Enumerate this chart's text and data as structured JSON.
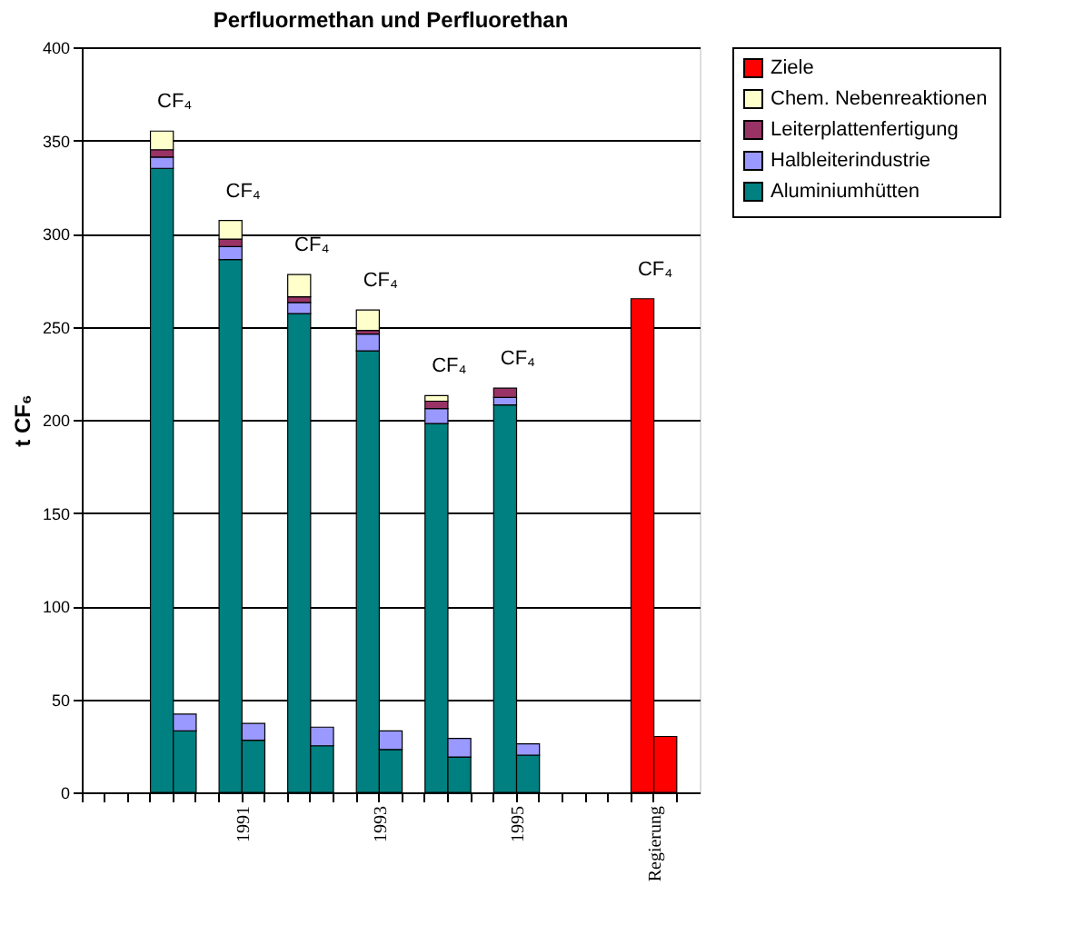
{
  "chart_data": {
    "type": "bar",
    "title": "Perfluormethan und Perfluorethan",
    "ylabel": "t CF₆",
    "categories": [
      null,
      null,
      null,
      null,
      null,
      null,
      "1991",
      null,
      null,
      null,
      null,
      null,
      "1993",
      null,
      null,
      null,
      null,
      null,
      "1995",
      null,
      null,
      null,
      null,
      null,
      "Regierung",
      null,
      null
    ],
    "stacked": true,
    "series": [
      {
        "name": "Aluminiumhütten",
        "color": "#008080",
        "values": [
          null,
          null,
          null,
          335,
          33,
          null,
          286,
          28,
          null,
          257,
          25,
          null,
          237,
          23,
          null,
          198,
          19,
          null,
          208,
          20,
          null,
          null,
          null,
          null,
          null,
          null,
          null
        ]
      },
      {
        "name": "Halbleiterindustrie",
        "color": "#9999ff",
        "values": [
          null,
          null,
          null,
          6,
          9,
          null,
          7,
          9,
          null,
          6,
          10,
          null,
          9,
          10,
          null,
          8,
          10,
          null,
          4,
          6,
          null,
          null,
          null,
          null,
          null,
          null,
          null
        ]
      },
      {
        "name": "Leiterplattenfertigung",
        "color": "#993366",
        "values": [
          null,
          null,
          null,
          4,
          null,
          null,
          4,
          null,
          null,
          3,
          null,
          null,
          2,
          null,
          null,
          4,
          null,
          null,
          5,
          null,
          null,
          null,
          null,
          null,
          null,
          null,
          null
        ]
      },
      {
        "name": "Chem. Nebenreaktionen",
        "color": "#ffffcc",
        "values": [
          null,
          null,
          null,
          10,
          null,
          null,
          10,
          null,
          null,
          12,
          null,
          null,
          11,
          null,
          null,
          3,
          null,
          null,
          null,
          null,
          null,
          null,
          null,
          null,
          null,
          null,
          null
        ]
      },
      {
        "name": "Ziele",
        "color": "#ff0000",
        "values": [
          null,
          null,
          null,
          null,
          null,
          null,
          null,
          null,
          null,
          null,
          null,
          null,
          null,
          null,
          null,
          null,
          null,
          null,
          null,
          null,
          null,
          null,
          null,
          null,
          265,
          30,
          null
        ]
      }
    ],
    "ylim": [
      0,
      400
    ],
    "yticks": [
      0,
      50,
      100,
      150,
      200,
      250,
      300,
      350,
      400
    ],
    "grid": "y",
    "legend": "right",
    "annotations": [
      "CF₄",
      "CF₄",
      "CF₄",
      "CF₄",
      "CF₄",
      "CF₄",
      "CF₄"
    ]
  }
}
